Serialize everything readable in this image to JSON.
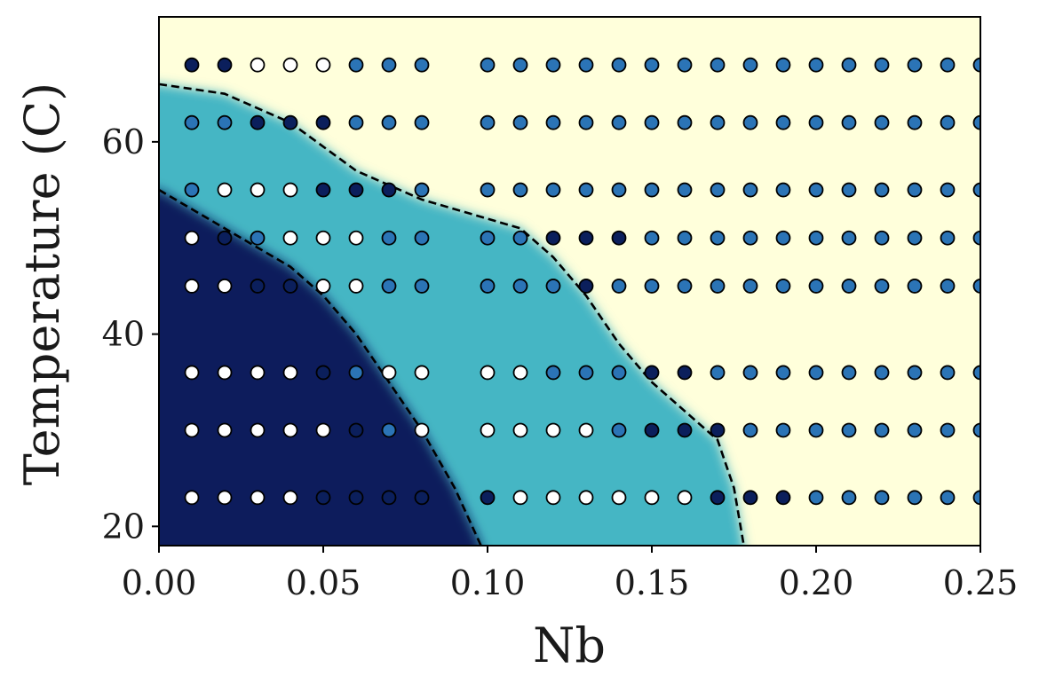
{
  "chart_data": {
    "type": "scatter",
    "title": "",
    "xlabel": "Nb",
    "ylabel": "Temperature (C)",
    "xlim": [
      0.0,
      0.25
    ],
    "ylim": [
      18,
      73
    ],
    "xticks": [
      {
        "value": 0.0,
        "label": "0.00"
      },
      {
        "value": 0.05,
        "label": "0.05"
      },
      {
        "value": 0.1,
        "label": "0.10"
      },
      {
        "value": 0.15,
        "label": "0.15"
      },
      {
        "value": 0.2,
        "label": "0.20"
      },
      {
        "value": 0.25,
        "label": "0.25"
      }
    ],
    "yticks": [
      {
        "value": 20,
        "label": "20"
      },
      {
        "value": 40,
        "label": "40"
      },
      {
        "value": 60,
        "label": "60"
      }
    ],
    "grid": false,
    "legend": "none",
    "phase_colors": {
      "phase_0": "#ffffff",
      "phase_1": "#0b1f5c",
      "phase_2": "#2b74b6",
      "region_low": "#0b1f5c",
      "region_mid": "#45b6c4",
      "region_high": "#ffffdb",
      "boundary_line": "#000000"
    },
    "region_boundaries": [
      {
        "name": "lower boundary",
        "style": "dashed",
        "points": [
          [
            0.0,
            55
          ],
          [
            0.02,
            51
          ],
          [
            0.04,
            47
          ],
          [
            0.05,
            44
          ],
          [
            0.06,
            40
          ],
          [
            0.07,
            35
          ],
          [
            0.08,
            30
          ],
          [
            0.09,
            24
          ],
          [
            0.098,
            18
          ]
        ]
      },
      {
        "name": "upper boundary",
        "style": "dashed",
        "points": [
          [
            0.0,
            66
          ],
          [
            0.02,
            65
          ],
          [
            0.04,
            62
          ],
          [
            0.06,
            57
          ],
          [
            0.07,
            55.5
          ],
          [
            0.08,
            54
          ],
          [
            0.1,
            52
          ],
          [
            0.11,
            51
          ],
          [
            0.12,
            48
          ],
          [
            0.13,
            44
          ],
          [
            0.14,
            39
          ],
          [
            0.15,
            35
          ],
          [
            0.16,
            32
          ],
          [
            0.17,
            29
          ],
          [
            0.175,
            24
          ],
          [
            0.177,
            20
          ],
          [
            0.178,
            18
          ]
        ]
      }
    ],
    "series": [
      {
        "y": 68,
        "points": [
          [
            0.01,
            1
          ],
          [
            0.02,
            1
          ],
          [
            0.03,
            0
          ],
          [
            0.04,
            0
          ],
          [
            0.05,
            0
          ],
          [
            0.06,
            2
          ],
          [
            0.07,
            2
          ],
          [
            0.08,
            2
          ],
          [
            0.1,
            2
          ],
          [
            0.11,
            2
          ],
          [
            0.12,
            2
          ],
          [
            0.13,
            2
          ],
          [
            0.14,
            2
          ],
          [
            0.15,
            2
          ],
          [
            0.16,
            2
          ],
          [
            0.17,
            2
          ],
          [
            0.18,
            2
          ],
          [
            0.19,
            2
          ],
          [
            0.2,
            2
          ],
          [
            0.21,
            2
          ],
          [
            0.22,
            2
          ],
          [
            0.23,
            2
          ],
          [
            0.24,
            2
          ],
          [
            0.25,
            2
          ]
        ]
      },
      {
        "y": 62,
        "points": [
          [
            0.01,
            2
          ],
          [
            0.02,
            2
          ],
          [
            0.03,
            1
          ],
          [
            0.04,
            1
          ],
          [
            0.05,
            1
          ],
          [
            0.06,
            2
          ],
          [
            0.07,
            2
          ],
          [
            0.08,
            2
          ],
          [
            0.1,
            2
          ],
          [
            0.11,
            2
          ],
          [
            0.12,
            2
          ],
          [
            0.13,
            2
          ],
          [
            0.14,
            2
          ],
          [
            0.15,
            2
          ],
          [
            0.16,
            2
          ],
          [
            0.17,
            2
          ],
          [
            0.18,
            2
          ],
          [
            0.19,
            2
          ],
          [
            0.2,
            2
          ],
          [
            0.21,
            2
          ],
          [
            0.22,
            2
          ],
          [
            0.23,
            2
          ],
          [
            0.24,
            2
          ],
          [
            0.25,
            2
          ]
        ]
      },
      {
        "y": 55,
        "points": [
          [
            0.01,
            2
          ],
          [
            0.02,
            0
          ],
          [
            0.03,
            0
          ],
          [
            0.04,
            0
          ],
          [
            0.05,
            1
          ],
          [
            0.06,
            1
          ],
          [
            0.07,
            1
          ],
          [
            0.08,
            2
          ],
          [
            0.1,
            2
          ],
          [
            0.11,
            2
          ],
          [
            0.12,
            2
          ],
          [
            0.13,
            2
          ],
          [
            0.14,
            2
          ],
          [
            0.15,
            2
          ],
          [
            0.16,
            2
          ],
          [
            0.17,
            2
          ],
          [
            0.18,
            2
          ],
          [
            0.19,
            2
          ],
          [
            0.2,
            2
          ],
          [
            0.21,
            2
          ],
          [
            0.22,
            2
          ],
          [
            0.23,
            2
          ],
          [
            0.24,
            2
          ],
          [
            0.25,
            2
          ]
        ]
      },
      {
        "y": 50,
        "points": [
          [
            0.01,
            0
          ],
          [
            0.02,
            1
          ],
          [
            0.03,
            2
          ],
          [
            0.04,
            0
          ],
          [
            0.05,
            0
          ],
          [
            0.06,
            0
          ],
          [
            0.07,
            2
          ],
          [
            0.08,
            2
          ],
          [
            0.1,
            2
          ],
          [
            0.11,
            2
          ],
          [
            0.12,
            1
          ],
          [
            0.13,
            1
          ],
          [
            0.14,
            1
          ],
          [
            0.15,
            2
          ],
          [
            0.16,
            2
          ],
          [
            0.17,
            2
          ],
          [
            0.18,
            2
          ],
          [
            0.19,
            2
          ],
          [
            0.2,
            2
          ],
          [
            0.21,
            2
          ],
          [
            0.22,
            2
          ],
          [
            0.23,
            2
          ],
          [
            0.24,
            2
          ],
          [
            0.25,
            2
          ]
        ]
      },
      {
        "y": 45,
        "points": [
          [
            0.01,
            0
          ],
          [
            0.02,
            0
          ],
          [
            0.03,
            1
          ],
          [
            0.04,
            1
          ],
          [
            0.05,
            0
          ],
          [
            0.06,
            0
          ],
          [
            0.07,
            2
          ],
          [
            0.08,
            2
          ],
          [
            0.1,
            2
          ],
          [
            0.11,
            2
          ],
          [
            0.12,
            2
          ],
          [
            0.13,
            1
          ],
          [
            0.14,
            2
          ],
          [
            0.15,
            2
          ],
          [
            0.16,
            2
          ],
          [
            0.17,
            2
          ],
          [
            0.18,
            2
          ],
          [
            0.19,
            2
          ],
          [
            0.2,
            2
          ],
          [
            0.21,
            2
          ],
          [
            0.22,
            2
          ],
          [
            0.23,
            2
          ],
          [
            0.24,
            2
          ],
          [
            0.25,
            2
          ]
        ]
      },
      {
        "y": 36,
        "points": [
          [
            0.01,
            0
          ],
          [
            0.02,
            0
          ],
          [
            0.03,
            0
          ],
          [
            0.04,
            0
          ],
          [
            0.05,
            1
          ],
          [
            0.06,
            2
          ],
          [
            0.07,
            0
          ],
          [
            0.08,
            0
          ],
          [
            0.1,
            0
          ],
          [
            0.11,
            0
          ],
          [
            0.12,
            2
          ],
          [
            0.13,
            2
          ],
          [
            0.14,
            2
          ],
          [
            0.15,
            1
          ],
          [
            0.16,
            1
          ],
          [
            0.17,
            2
          ],
          [
            0.18,
            2
          ],
          [
            0.19,
            2
          ],
          [
            0.2,
            2
          ],
          [
            0.21,
            2
          ],
          [
            0.22,
            2
          ],
          [
            0.23,
            2
          ],
          [
            0.24,
            2
          ],
          [
            0.25,
            2
          ]
        ]
      },
      {
        "y": 30,
        "points": [
          [
            0.01,
            0
          ],
          [
            0.02,
            0
          ],
          [
            0.03,
            0
          ],
          [
            0.04,
            0
          ],
          [
            0.05,
            0
          ],
          [
            0.06,
            1
          ],
          [
            0.07,
            2
          ],
          [
            0.08,
            0
          ],
          [
            0.1,
            0
          ],
          [
            0.11,
            0
          ],
          [
            0.12,
            0
          ],
          [
            0.13,
            0
          ],
          [
            0.14,
            2
          ],
          [
            0.15,
            1
          ],
          [
            0.16,
            1
          ],
          [
            0.17,
            1
          ],
          [
            0.18,
            2
          ],
          [
            0.19,
            2
          ],
          [
            0.2,
            2
          ],
          [
            0.21,
            2
          ],
          [
            0.22,
            2
          ],
          [
            0.23,
            2
          ],
          [
            0.24,
            2
          ],
          [
            0.25,
            2
          ]
        ]
      },
      {
        "y": 23,
        "points": [
          [
            0.01,
            0
          ],
          [
            0.02,
            0
          ],
          [
            0.03,
            0
          ],
          [
            0.04,
            0
          ],
          [
            0.05,
            1
          ],
          [
            0.06,
            1
          ],
          [
            0.07,
            1
          ],
          [
            0.08,
            1
          ],
          [
            0.1,
            1
          ],
          [
            0.11,
            0
          ],
          [
            0.12,
            0
          ],
          [
            0.13,
            0
          ],
          [
            0.14,
            0
          ],
          [
            0.15,
            0
          ],
          [
            0.16,
            0
          ],
          [
            0.17,
            1
          ],
          [
            0.18,
            1
          ],
          [
            0.19,
            1
          ],
          [
            0.2,
            2
          ],
          [
            0.21,
            2
          ],
          [
            0.22,
            2
          ],
          [
            0.23,
            2
          ],
          [
            0.24,
            2
          ],
          [
            0.25,
            2
          ]
        ]
      }
    ]
  }
}
